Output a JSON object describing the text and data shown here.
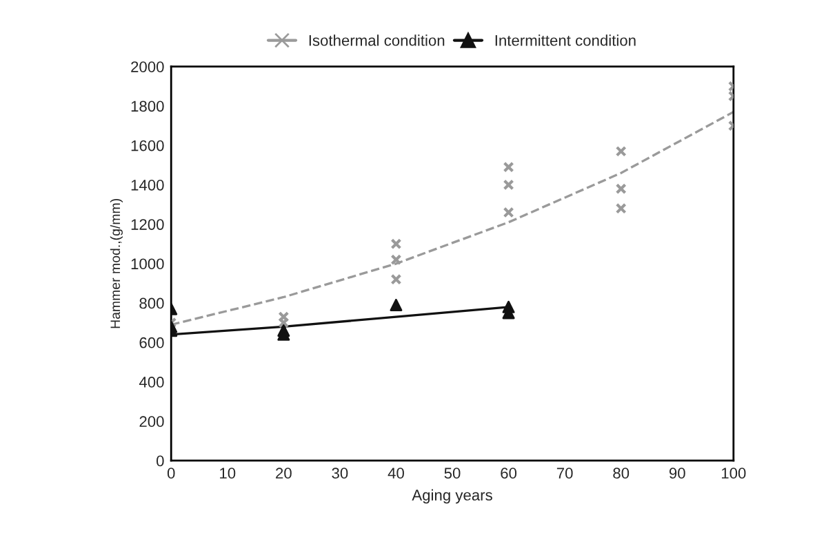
{
  "chart_data": {
    "type": "scatter",
    "xlabel": "Aging years",
    "ylabel": "Hammer mod.,(g/mm)",
    "xlim": [
      0,
      100
    ],
    "xticks": [
      0,
      10,
      20,
      30,
      40,
      50,
      60,
      70,
      80,
      90,
      100
    ],
    "ylim": [
      0,
      2000
    ],
    "yticks": [
      0,
      200,
      400,
      600,
      800,
      1000,
      1200,
      1400,
      1600,
      1800,
      2000
    ],
    "grid": false,
    "legend": "top",
    "series": [
      {
        "name": "Isothermal condition",
        "color": "#9a9a9a",
        "marker": "cross",
        "x": [
          0,
          20,
          20,
          40,
          40,
          40,
          60,
          60,
          60,
          80,
          80,
          80,
          100,
          100,
          100
        ],
        "values": [
          700,
          730,
          700,
          1100,
          1020,
          920,
          1490,
          1400,
          1260,
          1570,
          1380,
          1280,
          1900,
          1850,
          1700
        ]
      },
      {
        "name": "Intermittent condition",
        "color": "#111111",
        "marker": "triangle",
        "x": [
          0,
          0,
          0,
          20,
          20,
          40,
          60,
          60
        ],
        "values": [
          770,
          680,
          660,
          660,
          640,
          790,
          780,
          750
        ]
      },
      {
        "type": "line",
        "color": "#9a9a9a",
        "line_style": "dashed",
        "marker": "none",
        "x": [
          0,
          20,
          40,
          60,
          80,
          100
        ],
        "values": [
          690,
          830,
          1000,
          1210,
          1460,
          1770
        ]
      },
      {
        "type": "line",
        "color": "#111111",
        "line_style": "solid",
        "marker": "none",
        "x": [
          0,
          20,
          40,
          60
        ],
        "values": [
          640,
          680,
          730,
          780
        ]
      }
    ]
  }
}
